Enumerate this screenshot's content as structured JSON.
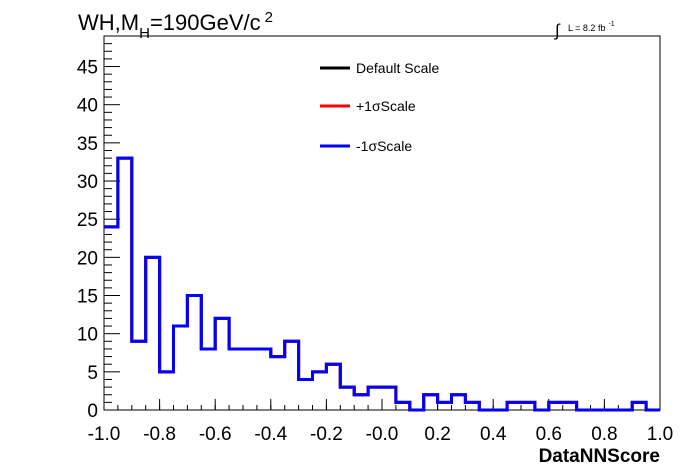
{
  "chart_data": {
    "type": "histogram",
    "title": {
      "main": "WH,M",
      "subscript": "H",
      "rest": "=190GeV/c",
      "superscript": "2"
    },
    "luminosity": {
      "integral_symbol": "∫",
      "text": "L = 8.2 fb",
      "superscript": "-1"
    },
    "xlabel": "DataNNScore",
    "ylabel": "",
    "xlim": [
      -1.0,
      1.0
    ],
    "ylim": [
      0,
      49
    ],
    "x_tick_labels": [
      "-1.0",
      "-0.8",
      "-0.6",
      "-0.4",
      "-0.2",
      "-0.0",
      "0.2",
      "0.4",
      "0.6",
      "0.8",
      "1.0"
    ],
    "y_ticks": [
      0,
      5,
      10,
      15,
      20,
      25,
      30,
      35,
      40,
      45
    ],
    "bin_edges": [
      -1.0,
      -0.95,
      -0.9,
      -0.85,
      -0.8,
      -0.75,
      -0.7,
      -0.65,
      -0.6,
      -0.55,
      -0.5,
      -0.45,
      -0.4,
      -0.35,
      -0.3,
      -0.25,
      -0.2,
      -0.15,
      -0.1,
      -0.05,
      0.0,
      0.05,
      0.1,
      0.15,
      0.2,
      0.25,
      0.3,
      0.35,
      0.4,
      0.45,
      0.5,
      0.55,
      0.6,
      0.65,
      0.7,
      0.75,
      0.8,
      0.85,
      0.9,
      0.95,
      1.0
    ],
    "series": [
      {
        "name": "Default Scale",
        "color": "#000000",
        "values": [
          24,
          33,
          9,
          20,
          5,
          11,
          15,
          8,
          12,
          8,
          8,
          8,
          7,
          9,
          4,
          5,
          6,
          3,
          2,
          3,
          3,
          1,
          0,
          2,
          1,
          2,
          1,
          0,
          0,
          1,
          1,
          0,
          1,
          1,
          0,
          0,
          0,
          0,
          1,
          0
        ]
      },
      {
        "name": "+1σScale",
        "color": "#ff0000",
        "values": [
          24,
          33,
          9,
          20,
          5,
          11,
          15,
          8,
          12,
          8,
          8,
          8,
          7,
          9,
          4,
          5,
          6,
          3,
          2,
          3,
          3,
          1,
          0,
          2,
          1,
          2,
          1,
          0,
          0,
          1,
          1,
          0,
          1,
          1,
          0,
          0,
          0,
          0,
          1,
          0
        ]
      },
      {
        "name": "-1σScale",
        "color": "#0000ff",
        "values": [
          24,
          33,
          9,
          20,
          5,
          11,
          15,
          8,
          12,
          8,
          8,
          8,
          7,
          9,
          4,
          5,
          6,
          3,
          2,
          3,
          3,
          1,
          0,
          2,
          1,
          2,
          1,
          0,
          0,
          1,
          1,
          0,
          1,
          1,
          0,
          0,
          0,
          0,
          1,
          0
        ]
      }
    ],
    "legend_position": "top-center",
    "grid": false
  }
}
